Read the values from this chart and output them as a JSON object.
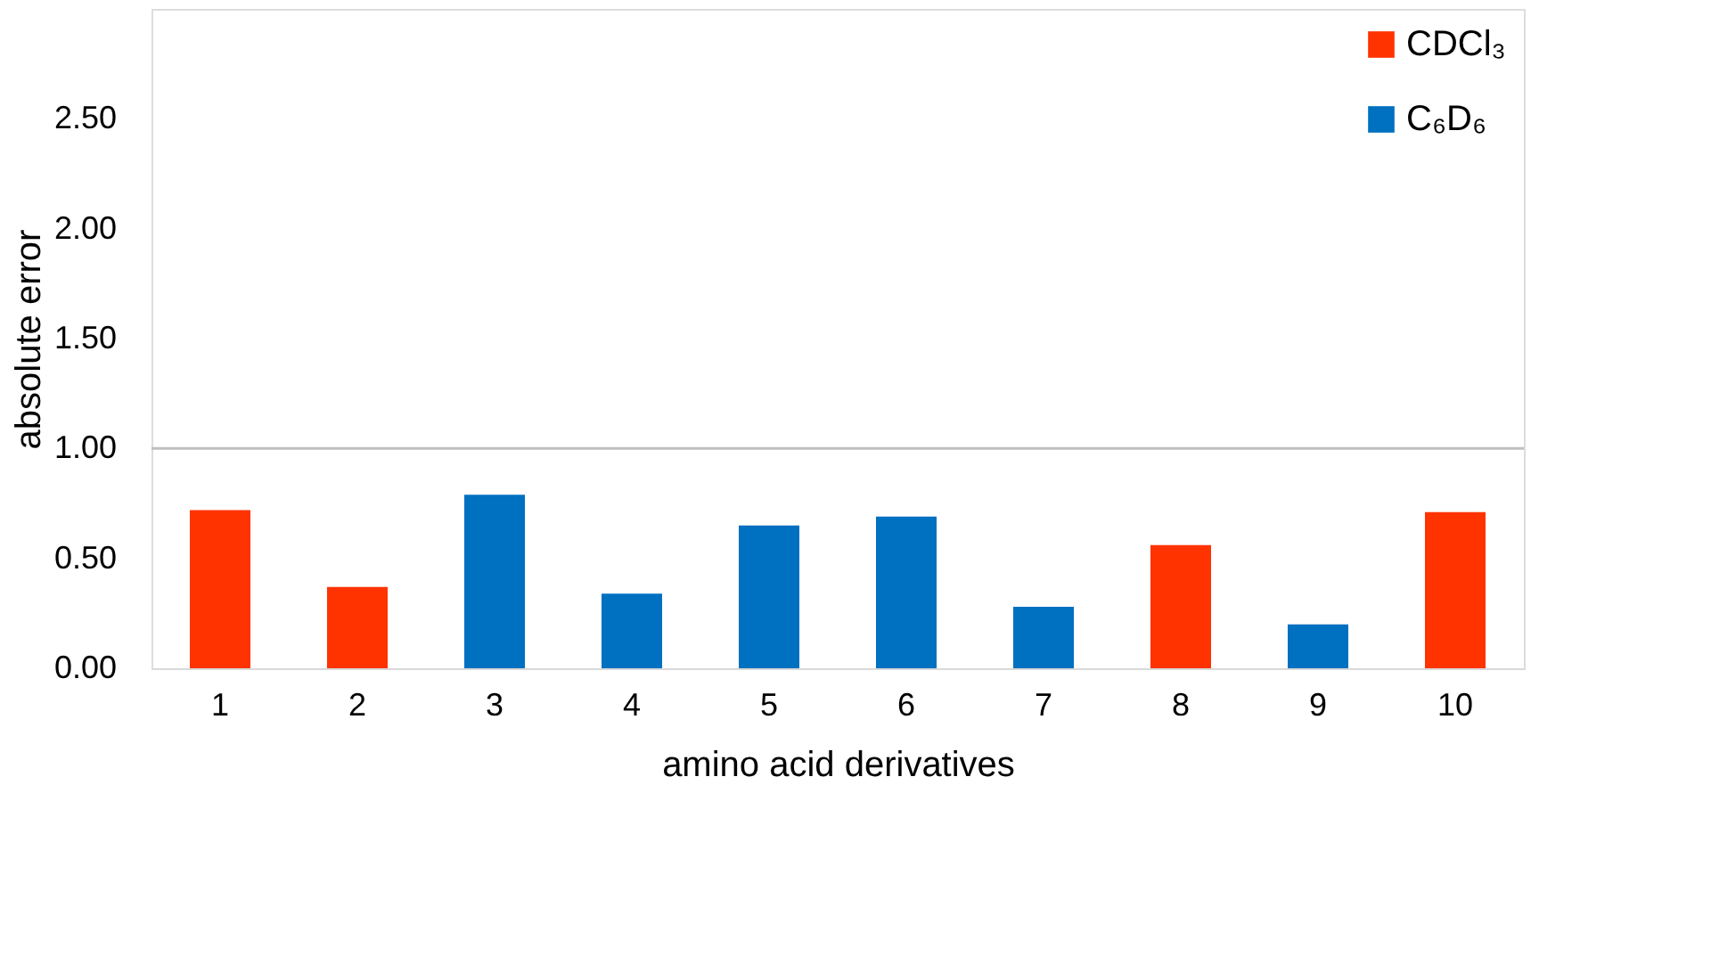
{
  "chart_data": {
    "type": "bar",
    "xlabel": "amino acid derivatives",
    "ylabel": "absolute error",
    "categories": [
      "1",
      "2",
      "3",
      "4",
      "5",
      "6",
      "7",
      "8",
      "9",
      "10"
    ],
    "series": [
      {
        "name": "CDCl₃",
        "color": "#ff3300",
        "values": [
          0.72,
          0.37,
          null,
          null,
          null,
          null,
          null,
          0.56,
          null,
          0.71
        ]
      },
      {
        "name": "C₆D₆",
        "color": "#0070c0",
        "values": [
          null,
          null,
          0.79,
          0.34,
          0.65,
          0.69,
          0.28,
          null,
          0.2,
          null
        ]
      }
    ],
    "ylim": [
      0,
      3.0
    ],
    "yticks": [
      {
        "value": 0,
        "label": "0.00"
      },
      {
        "value": 0.5,
        "label": "0.50"
      },
      {
        "value": 1,
        "label": "1.00"
      },
      {
        "value": 1.5,
        "label": "1.50"
      },
      {
        "value": 2,
        "label": "2.00"
      },
      {
        "value": 2.5,
        "label": "2.50"
      }
    ],
    "ref_lines": [
      {
        "axis": "y",
        "value": 1.0,
        "color": "#bfbfbf"
      }
    ],
    "grid": false,
    "legend": "top right"
  }
}
